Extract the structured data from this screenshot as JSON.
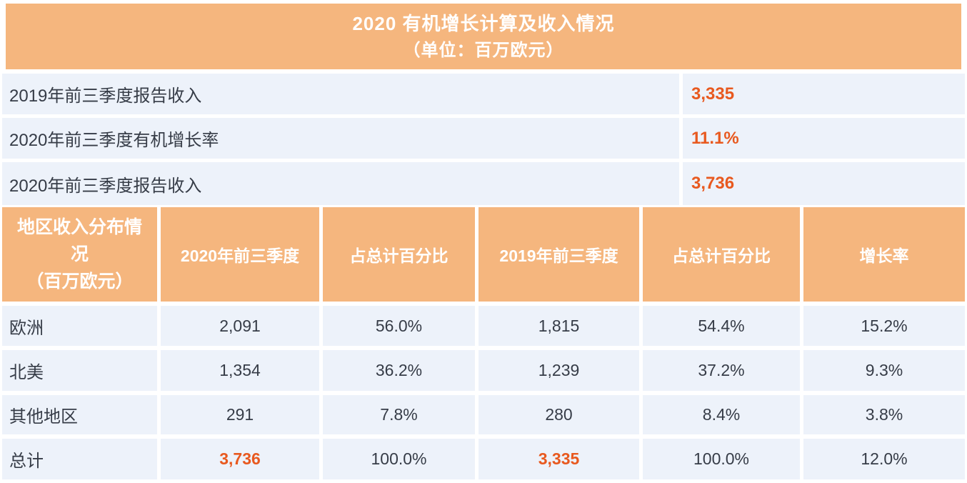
{
  "colors": {
    "header_bg": "#f5b67e",
    "row_bg": "#edf2fa",
    "accent_text": "#e8591f",
    "dark_text": "#363c47",
    "header_text": "#ffffff",
    "page_bg": "#ffffff"
  },
  "title": {
    "line1": "2020 有机增长计算及收入情况",
    "line2": "（单位：百万欧元）"
  },
  "summary_table": {
    "rows": [
      {
        "label": "2019年前三季度报告收入",
        "value": "3,335"
      },
      {
        "label": "2020年前三季度有机增长率",
        "value": "11.1%"
      },
      {
        "label": "2020年前三季度报告收入",
        "value": "3,736"
      }
    ]
  },
  "region_table": {
    "corner_header": "地区收入分布情\n况\n（百万欧元）",
    "column_headers": [
      "2020年前三季度",
      "占总计百分比",
      "2019年前三季度",
      "占总计百分比",
      "增长率"
    ],
    "rows": [
      {
        "region": "欧洲",
        "values": [
          "2,091",
          "56.0%",
          "1,815",
          "54.4%",
          "15.2%"
        ]
      },
      {
        "region": "北美",
        "values": [
          "1,354",
          "36.2%",
          "1,239",
          "37.2%",
          "9.3%"
        ]
      },
      {
        "region": "其他地区",
        "values": [
          "291",
          "7.8%",
          "280",
          "8.4%",
          "3.8%"
        ]
      },
      {
        "region": "总计",
        "values": [
          "3,736",
          "100.0%",
          "3,335",
          "100.0%",
          "12.0%"
        ]
      }
    ]
  },
  "chart_data": {
    "type": "table",
    "title": "2020 有机增长计算及收入情况（单位：百万欧元）",
    "summary": [
      {
        "label": "2019年前三季度报告收入",
        "value": 3335
      },
      {
        "label": "2020年前三季度有机增长率",
        "value": "11.1%"
      },
      {
        "label": "2020年前三季度报告收入",
        "value": 3736
      }
    ],
    "columns": [
      "地区收入分布情况（百万欧元）",
      "2020年前三季度",
      "占总计百分比",
      "2019年前三季度",
      "占总计百分比",
      "增长率"
    ],
    "rows": [
      [
        "欧洲",
        "2,091",
        "56.0%",
        "1,815",
        "54.4%",
        "15.2%"
      ],
      [
        "北美",
        "1,354",
        "36.2%",
        "1,239",
        "37.2%",
        "9.3%"
      ],
      [
        "其他地区",
        "291",
        "7.8%",
        "280",
        "8.4%",
        "3.8%"
      ],
      [
        "总计",
        "3,736",
        "100.0%",
        "3,335",
        "100.0%",
        "12.0%"
      ]
    ]
  }
}
